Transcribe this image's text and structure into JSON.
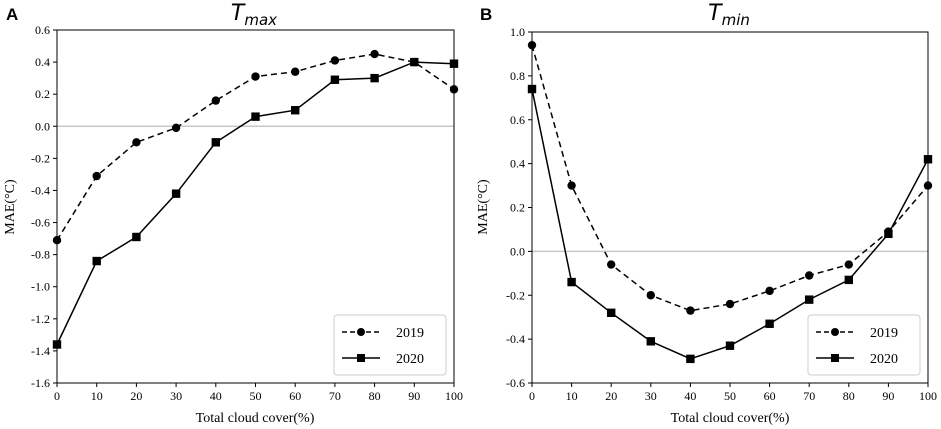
{
  "figure": {
    "panel_letters": [
      "A",
      "B"
    ]
  },
  "chart_data": [
    {
      "type": "line",
      "panel": "A",
      "title": {
        "main": "T",
        "sub": "max"
      },
      "xlabel": "Total cloud cover(%)",
      "ylabel": "MAE(°C)",
      "x": [
        0,
        10,
        20,
        30,
        40,
        50,
        60,
        70,
        80,
        90,
        100
      ],
      "xlim": [
        0,
        100
      ],
      "ylim": [
        -1.6,
        0.6
      ],
      "xticks": [
        0,
        10,
        20,
        30,
        40,
        50,
        60,
        70,
        80,
        90,
        100
      ],
      "yticks": [
        -1.6,
        -1.4,
        -1.2,
        -1.0,
        -0.8,
        -0.6,
        -0.4,
        -0.2,
        0.0,
        0.2,
        0.4,
        0.6
      ],
      "ytick_labels": [
        "-1.6",
        "-1.4",
        "-1.2",
        "-1.0",
        "-0.8",
        "-0.6",
        "-0.4",
        "-0.2",
        "0.0",
        "0.2",
        "0.4",
        "0.6"
      ],
      "reference_line": 0.0,
      "legend_position": "bottom-right",
      "series": [
        {
          "name": "2019",
          "style": "dashed",
          "marker": "circle",
          "values": [
            -0.71,
            -0.31,
            -0.1,
            -0.01,
            0.16,
            0.31,
            0.34,
            0.41,
            0.45,
            0.4,
            0.23
          ]
        },
        {
          "name": "2020",
          "style": "solid",
          "marker": "square",
          "values": [
            -1.36,
            -0.84,
            -0.69,
            -0.42,
            -0.1,
            0.06,
            0.1,
            0.29,
            0.3,
            0.4,
            0.39
          ]
        }
      ]
    },
    {
      "type": "line",
      "panel": "B",
      "title": {
        "main": "T",
        "sub": "min"
      },
      "xlabel": "Total cloud cover(%)",
      "ylabel": "MAE(°C)",
      "x": [
        0,
        10,
        20,
        30,
        40,
        50,
        60,
        70,
        80,
        90,
        100
      ],
      "xlim": [
        0,
        100
      ],
      "ylim": [
        -0.6,
        1.0
      ],
      "xticks": [
        0,
        10,
        20,
        30,
        40,
        50,
        60,
        70,
        80,
        90,
        100
      ],
      "yticks": [
        -0.6,
        -0.4,
        -0.2,
        0.0,
        0.2,
        0.4,
        0.6,
        0.8,
        1.0
      ],
      "ytick_labels": [
        "-0.6",
        "-0.4",
        "-0.2",
        "0.0",
        "0.2",
        "0.4",
        "0.6",
        "0.8",
        "1.0"
      ],
      "reference_line": 0.0,
      "legend_position": "bottom-right",
      "series": [
        {
          "name": "2019",
          "style": "dashed",
          "marker": "circle",
          "values": [
            0.94,
            0.3,
            -0.06,
            -0.2,
            -0.27,
            -0.24,
            -0.18,
            -0.11,
            -0.06,
            0.09,
            0.3
          ]
        },
        {
          "name": "2020",
          "style": "solid",
          "marker": "square",
          "values": [
            0.74,
            -0.14,
            -0.28,
            -0.41,
            -0.49,
            -0.43,
            -0.33,
            -0.22,
            -0.13,
            0.08,
            0.42
          ]
        }
      ]
    }
  ]
}
